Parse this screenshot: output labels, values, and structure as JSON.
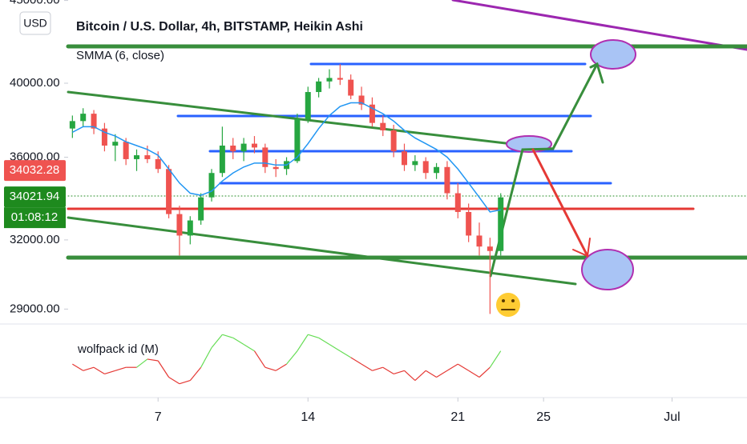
{
  "chart_data": {
    "type": "candlestick",
    "title": "Bitcoin / U.S. Dollar, 4h, BITSTAMP, Heikin Ashi",
    "currency": "USD",
    "log_scale": true,
    "x": [
      3,
      3.5,
      4,
      4.5,
      5,
      5.5,
      6,
      6.5,
      7,
      7.5,
      8,
      8.5,
      9,
      9.5,
      10,
      10.5,
      11,
      11.5,
      12,
      12.5,
      13,
      13.5,
      14,
      14.5,
      15,
      15.5,
      16,
      16.5,
      17,
      17.5,
      18,
      18.5,
      19,
      19.5,
      20,
      20.5,
      21,
      21.5,
      22,
      22.5,
      23
    ],
    "open": [
      37500,
      37900,
      38300,
      37500,
      36600,
      36800,
      35900,
      36100,
      35900,
      35400,
      33200,
      32200,
      32900,
      34000,
      35200,
      36600,
      36300,
      36700,
      36500,
      35500,
      35400,
      35800,
      38000,
      39500,
      40100,
      40300,
      40200,
      39300,
      38800,
      37800,
      37400,
      36300,
      35600,
      35800,
      35200,
      35500,
      34200,
      33300,
      32200,
      31700,
      31500
    ],
    "high": [
      38200,
      38600,
      38500,
      37800,
      37200,
      37000,
      36400,
      36600,
      36300,
      35600,
      33600,
      33100,
      34200,
      35400,
      37600,
      37000,
      37000,
      37100,
      36700,
      35900,
      36000,
      38300,
      39800,
      40300,
      40800,
      41100,
      40500,
      39800,
      39200,
      38200,
      37700,
      36700,
      36100,
      36000,
      35700,
      35800,
      34700,
      33700,
      32800,
      32100,
      34200
    ],
    "low": [
      37000,
      37600,
      37200,
      36300,
      35800,
      35600,
      35300,
      35700,
      35200,
      33000,
      31300,
      31800,
      32700,
      33800,
      35000,
      35900,
      35800,
      36200,
      35200,
      35000,
      35100,
      35700,
      37800,
      39200,
      39700,
      39900,
      39100,
      38500,
      37600,
      37100,
      36000,
      35300,
      35300,
      34900,
      34900,
      33900,
      33000,
      31900,
      31300,
      28800,
      31300
    ],
    "close": [
      37900,
      38300,
      37500,
      36600,
      36800,
      35900,
      36100,
      35900,
      35400,
      33200,
      32200,
      32900,
      34000,
      35200,
      36600,
      36300,
      36700,
      36500,
      35500,
      35400,
      35800,
      38000,
      39500,
      40100,
      40300,
      40200,
      39300,
      38800,
      37800,
      37400,
      36300,
      35600,
      35800,
      35200,
      35500,
      34200,
      33300,
      32200,
      31700,
      31500,
      34000
    ],
    "up_color": "#26a641",
    "down_color": "#ef5350",
    "smma": {
      "name": "SMMA (6, close)",
      "color": "#2196f3",
      "values": [
        37300,
        37600,
        37600,
        37300,
        37100,
        36800,
        36600,
        36400,
        36100,
        35400,
        34700,
        34200,
        34100,
        34300,
        34800,
        35200,
        35500,
        35700,
        35700,
        35600,
        35600,
        36000,
        36700,
        37500,
        38200,
        38700,
        38900,
        38900,
        38600,
        38300,
        37900,
        37400,
        37000,
        36700,
        36400,
        36000,
        35400,
        34700,
        34000,
        33300,
        33400
      ]
    },
    "indicator": {
      "name": "wolfpack id (M)",
      "up_color": "#66dd55",
      "down_color": "#e53935",
      "ylim": [
        -1,
        1
      ],
      "values": [
        -0.1,
        -0.3,
        -0.2,
        -0.4,
        -0.3,
        -0.2,
        -0.2,
        0.05,
        0,
        -0.5,
        -0.7,
        -0.6,
        -0.2,
        0.4,
        0.8,
        0.7,
        0.5,
        0.3,
        -0.2,
        -0.3,
        -0.1,
        0.3,
        0.8,
        0.7,
        0.5,
        0.3,
        0.1,
        -0.1,
        -0.3,
        -0.2,
        -0.4,
        -0.3,
        -0.6,
        -0.3,
        -0.5,
        -0.3,
        -0.1,
        -0.3,
        -0.5,
        -0.2,
        0.3
      ]
    },
    "xlim": [
      2.8,
      34.5
    ],
    "xticks": [
      {
        "value": 7,
        "label": "7"
      },
      {
        "value": 14,
        "label": "14"
      },
      {
        "value": 21,
        "label": "21"
      },
      {
        "value": 25,
        "label": "25"
      },
      {
        "value": 31,
        "label": "Jul"
      }
    ],
    "ylim": [
      28390,
      45030
    ],
    "yticks": [
      {
        "value": 29000,
        "label": "29000.00"
      },
      {
        "value": 32000,
        "label": "32000.00"
      },
      {
        "value": 36000,
        "label": "36000.00"
      },
      {
        "value": 40000,
        "label": "40000.00"
      },
      {
        "value": 45000,
        "label": "45000.00"
      }
    ],
    "price_labels": [
      {
        "value": 34032.28,
        "label": "34032.28",
        "color": "#ef5350"
      },
      {
        "value": 34021.94,
        "label": "34021.94",
        "color": "#1e8a1e"
      }
    ],
    "countdown": "01:08:12"
  }
}
